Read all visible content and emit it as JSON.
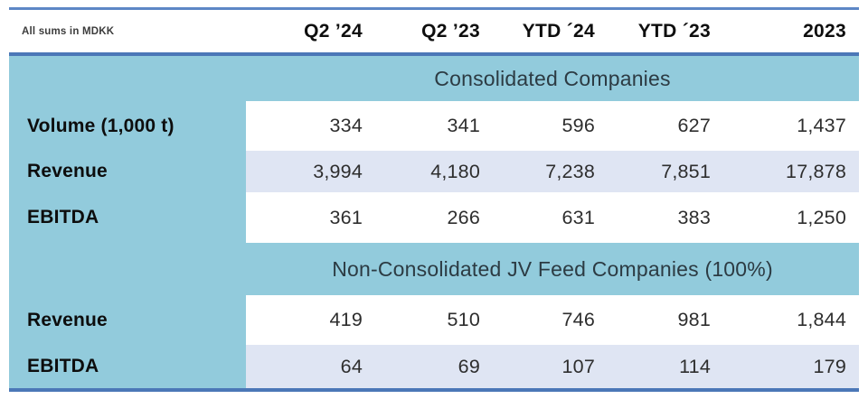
{
  "table": {
    "note": "All sums in MDKK",
    "columns": [
      "Q2 ’24",
      "Q2 ’23",
      "YTD ´24",
      "YTD ´23",
      "2023"
    ],
    "sections": [
      {
        "title": "Consolidated Companies",
        "rows": [
          {
            "label": "Volume (1,000 t)",
            "values": [
              "334",
              "341",
              "596",
              "627",
              "1,437"
            ]
          },
          {
            "label": "Revenue",
            "values": [
              "3,994",
              "4,180",
              "7,238",
              "7,851",
              "17,878"
            ]
          },
          {
            "label": "EBITDA",
            "values": [
              "361",
              "266",
              "631",
              "383",
              "1,250"
            ]
          }
        ]
      },
      {
        "title": "Non-Consolidated JV Feed Companies (100%)",
        "rows": [
          {
            "label": "Revenue",
            "values": [
              "419",
              "510",
              "746",
              "981",
              "1,844"
            ]
          },
          {
            "label": "EBITDA",
            "values": [
              "64",
              "69",
              "107",
              "114",
              "179"
            ]
          }
        ]
      }
    ]
  },
  "colors": {
    "band_blue": "#92cbdc",
    "stripe_lavender": "#dfe5f3",
    "rule_top": "#5d87c6",
    "rule_heavy": "#4b77b7",
    "text_dark": "#0d0d0d",
    "text_number": "#2e2e2e",
    "text_band_title": "#2c3b43"
  },
  "chart_data": {
    "type": "table",
    "title": "",
    "units_note": "All sums in MDKK",
    "columns": [
      "Q2 '24",
      "Q2 '23",
      "YTD ´24",
      "YTD ´23",
      "2023"
    ],
    "sections": [
      {
        "name": "Consolidated Companies",
        "rows": [
          {
            "metric": "Volume (1,000 t)",
            "values": [
              334,
              341,
              596,
              627,
              1437
            ]
          },
          {
            "metric": "Revenue",
            "values": [
              3994,
              4180,
              7238,
              7851,
              17878
            ]
          },
          {
            "metric": "EBITDA",
            "values": [
              361,
              266,
              631,
              383,
              1250
            ]
          }
        ]
      },
      {
        "name": "Non-Consolidated JV Feed Companies (100%)",
        "rows": [
          {
            "metric": "Revenue",
            "values": [
              419,
              510,
              746,
              981,
              1844
            ]
          },
          {
            "metric": "EBITDA",
            "values": [
              64,
              69,
              107,
              114,
              179
            ]
          }
        ]
      }
    ]
  }
}
